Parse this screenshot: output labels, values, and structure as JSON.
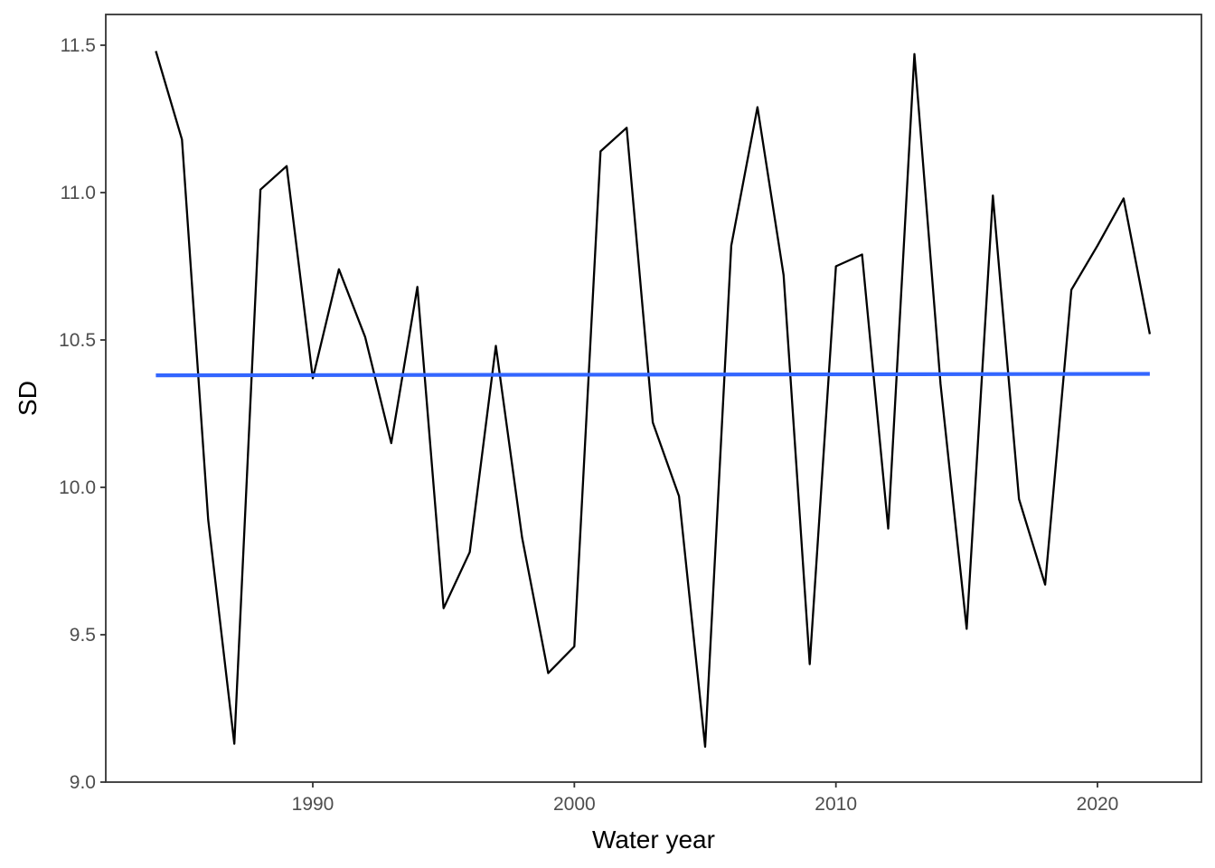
{
  "chart_data": {
    "type": "line",
    "title": "",
    "xlabel": "Water year",
    "ylabel": "SD",
    "xlim": [
      1982,
      2023
    ],
    "ylim": [
      9.0,
      11.6
    ],
    "x_ticks": [
      1990,
      2000,
      2010,
      2020
    ],
    "x_tick_labels": [
      "1990",
      "2000",
      "2010",
      "2020"
    ],
    "y_ticks": [
      9.0,
      9.5,
      10.0,
      10.5,
      11.0,
      11.5
    ],
    "y_tick_labels": [
      "9.0",
      "9.5",
      "10.0",
      "10.5",
      "11.0",
      "11.5"
    ],
    "grid": false,
    "series": [
      {
        "color": "#000000",
        "x": [
          1984,
          1985,
          1986,
          1987,
          1988,
          1989,
          1990,
          1991,
          1992,
          1993,
          1994,
          1995,
          1996,
          1997,
          1998,
          1999,
          2000,
          2001,
          2002,
          2003,
          2004,
          2005,
          2006,
          2007,
          2008,
          2009,
          2010,
          2011,
          2012,
          2013,
          2014,
          2015,
          2016,
          2017,
          2018,
          2019,
          2020,
          2021,
          2022
        ],
        "values": [
          11.48,
          11.18,
          9.89,
          9.13,
          11.01,
          11.09,
          10.37,
          10.74,
          10.51,
          10.15,
          10.68,
          9.59,
          9.78,
          10.48,
          9.83,
          9.37,
          9.46,
          11.14,
          11.22,
          10.22,
          9.97,
          9.12,
          10.82,
          11.29,
          10.72,
          9.4,
          10.75,
          10.79,
          9.86,
          11.47,
          10.35,
          9.52,
          10.99,
          9.96,
          9.67,
          10.67,
          10.82,
          10.98,
          10.52
        ]
      },
      {
        "color": "#3366ff",
        "x": [
          1984,
          2022
        ],
        "values": [
          10.38,
          10.385
        ]
      }
    ]
  }
}
